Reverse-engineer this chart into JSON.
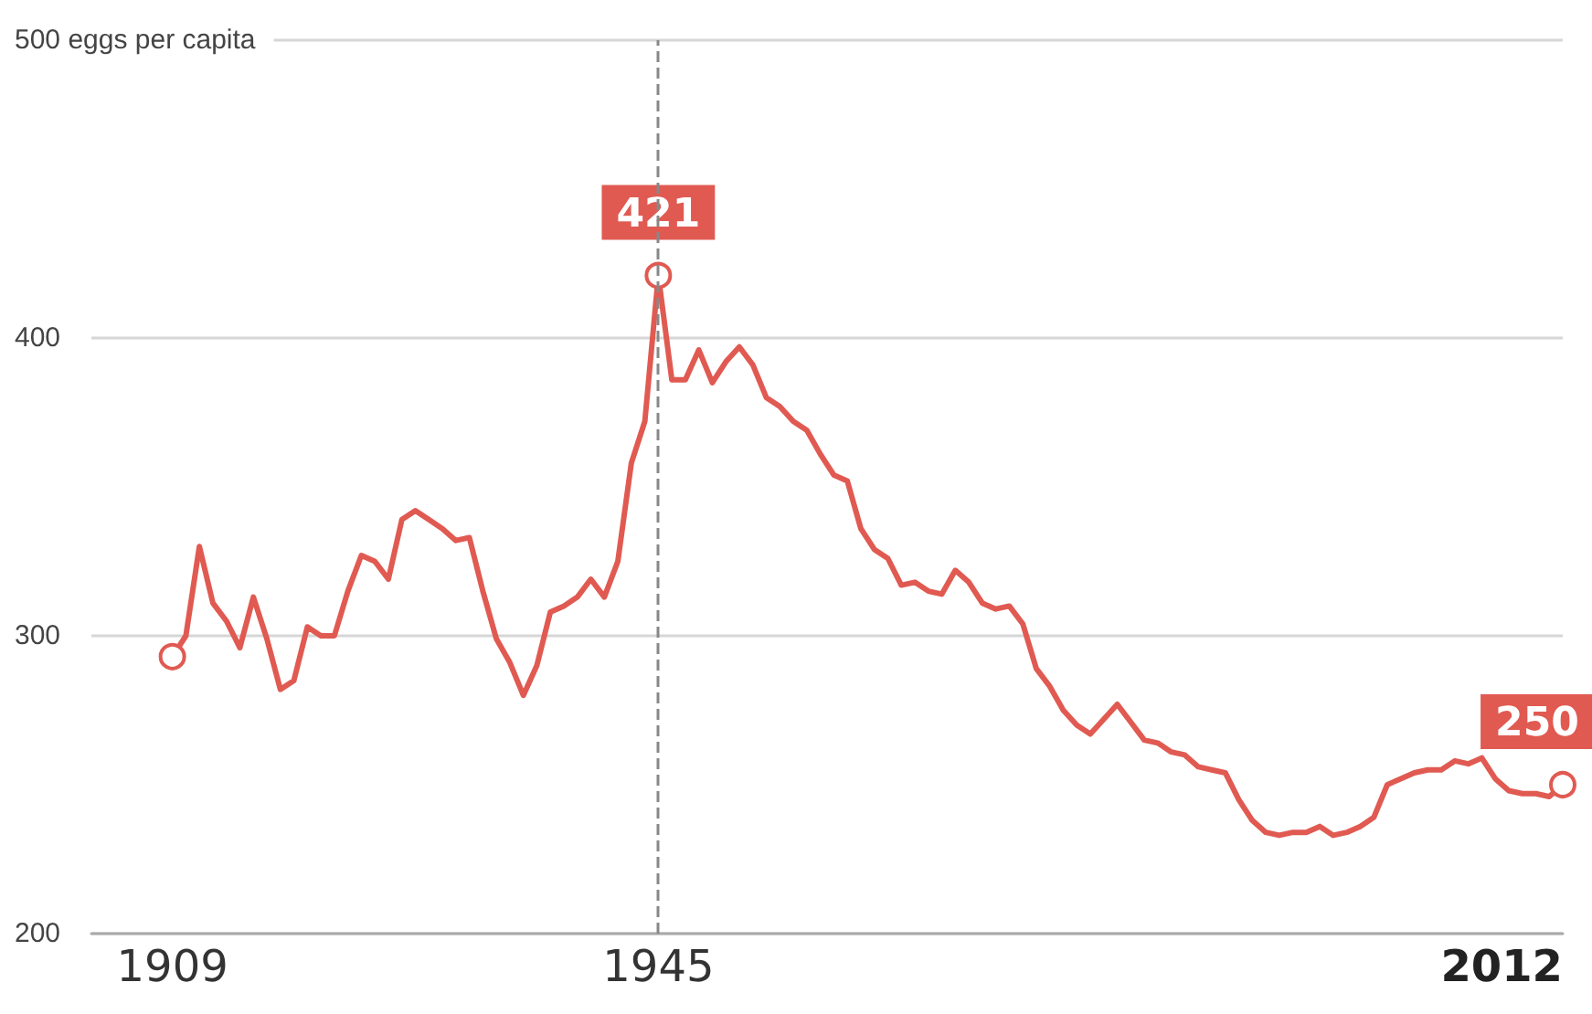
{
  "chart_data": {
    "type": "line",
    "x": [
      1909,
      1910,
      1911,
      1912,
      1913,
      1914,
      1915,
      1916,
      1917,
      1918,
      1919,
      1920,
      1921,
      1922,
      1923,
      1924,
      1925,
      1926,
      1927,
      1928,
      1929,
      1930,
      1931,
      1932,
      1933,
      1934,
      1935,
      1936,
      1937,
      1938,
      1939,
      1940,
      1941,
      1942,
      1943,
      1944,
      1945,
      1946,
      1947,
      1948,
      1949,
      1950,
      1951,
      1952,
      1953,
      1954,
      1955,
      1956,
      1957,
      1958,
      1959,
      1960,
      1961,
      1962,
      1963,
      1964,
      1965,
      1966,
      1967,
      1968,
      1969,
      1970,
      1971,
      1972,
      1973,
      1974,
      1975,
      1976,
      1977,
      1978,
      1979,
      1980,
      1981,
      1982,
      1983,
      1984,
      1985,
      1986,
      1987,
      1988,
      1989,
      1990,
      1991,
      1992,
      1993,
      1994,
      1995,
      1996,
      1997,
      1998,
      1999,
      2000,
      2001,
      2002,
      2003,
      2004,
      2005,
      2006,
      2007,
      2008,
      2009,
      2010,
      2011,
      2012
    ],
    "series": [
      {
        "color": "#e05a52",
        "values": [
          293,
          300,
          330,
          311,
          305,
          296,
          313,
          299,
          282,
          285,
          303,
          300,
          300,
          315,
          327,
          325,
          319,
          339,
          342,
          339,
          336,
          332,
          333,
          315,
          299,
          291,
          280,
          290,
          308,
          310,
          313,
          319,
          313,
          325,
          358,
          372,
          421,
          386,
          386,
          396,
          385,
          392,
          397,
          391,
          380,
          377,
          372,
          369,
          361,
          354,
          352,
          336,
          329,
          326,
          317,
          318,
          315,
          314,
          322,
          318,
          311,
          309,
          310,
          304,
          289,
          283,
          275,
          270,
          267,
          272,
          277,
          271,
          265,
          264,
          261,
          260,
          256,
          255,
          254,
          245,
          238,
          234,
          233,
          234,
          234,
          236,
          233,
          234,
          236,
          239,
          250,
          252,
          254,
          255,
          255,
          258,
          257,
          259,
          252,
          248,
          247,
          247,
          246,
          250
        ],
        "value_labels": [
          null,
          null,
          null,
          null,
          null,
          null,
          null,
          null,
          null,
          null,
          null,
          null,
          null,
          null,
          null,
          null,
          null,
          null,
          null,
          null,
          null,
          null,
          null,
          null,
          null,
          null,
          null,
          null,
          null,
          null,
          null,
          null,
          null,
          null,
          null,
          null,
          "421",
          null,
          null,
          null,
          null,
          null,
          null,
          null,
          null,
          null,
          null,
          null,
          null,
          null,
          null,
          null,
          null,
          null,
          null,
          null,
          null,
          null,
          null,
          null,
          null,
          null,
          null,
          null,
          null,
          null,
          null,
          null,
          null,
          null,
          null,
          null,
          null,
          null,
          null,
          null,
          null,
          null,
          null,
          null,
          null,
          null,
          null,
          null,
          null,
          null,
          null,
          null,
          null,
          null,
          null,
          null,
          null,
          null,
          null,
          null,
          null,
          null,
          null,
          null,
          null,
          null,
          null,
          "250"
        ]
      }
    ],
    "xlim": [
      1903,
      2012
    ],
    "xticks": [
      1909,
      1945,
      2012
    ],
    "ylim": [
      200,
      500
    ],
    "yticks": [
      200,
      300,
      400,
      {
        "value": 500,
        "label": "500 eggs per capita"
      }
    ],
    "grid": "y",
    "line_style": "solid",
    "ref_lines": [
      {
        "axis": "x",
        "value": 1945,
        "label": null,
        "color": "#888888",
        "line_style": "dashed"
      }
    ]
  }
}
